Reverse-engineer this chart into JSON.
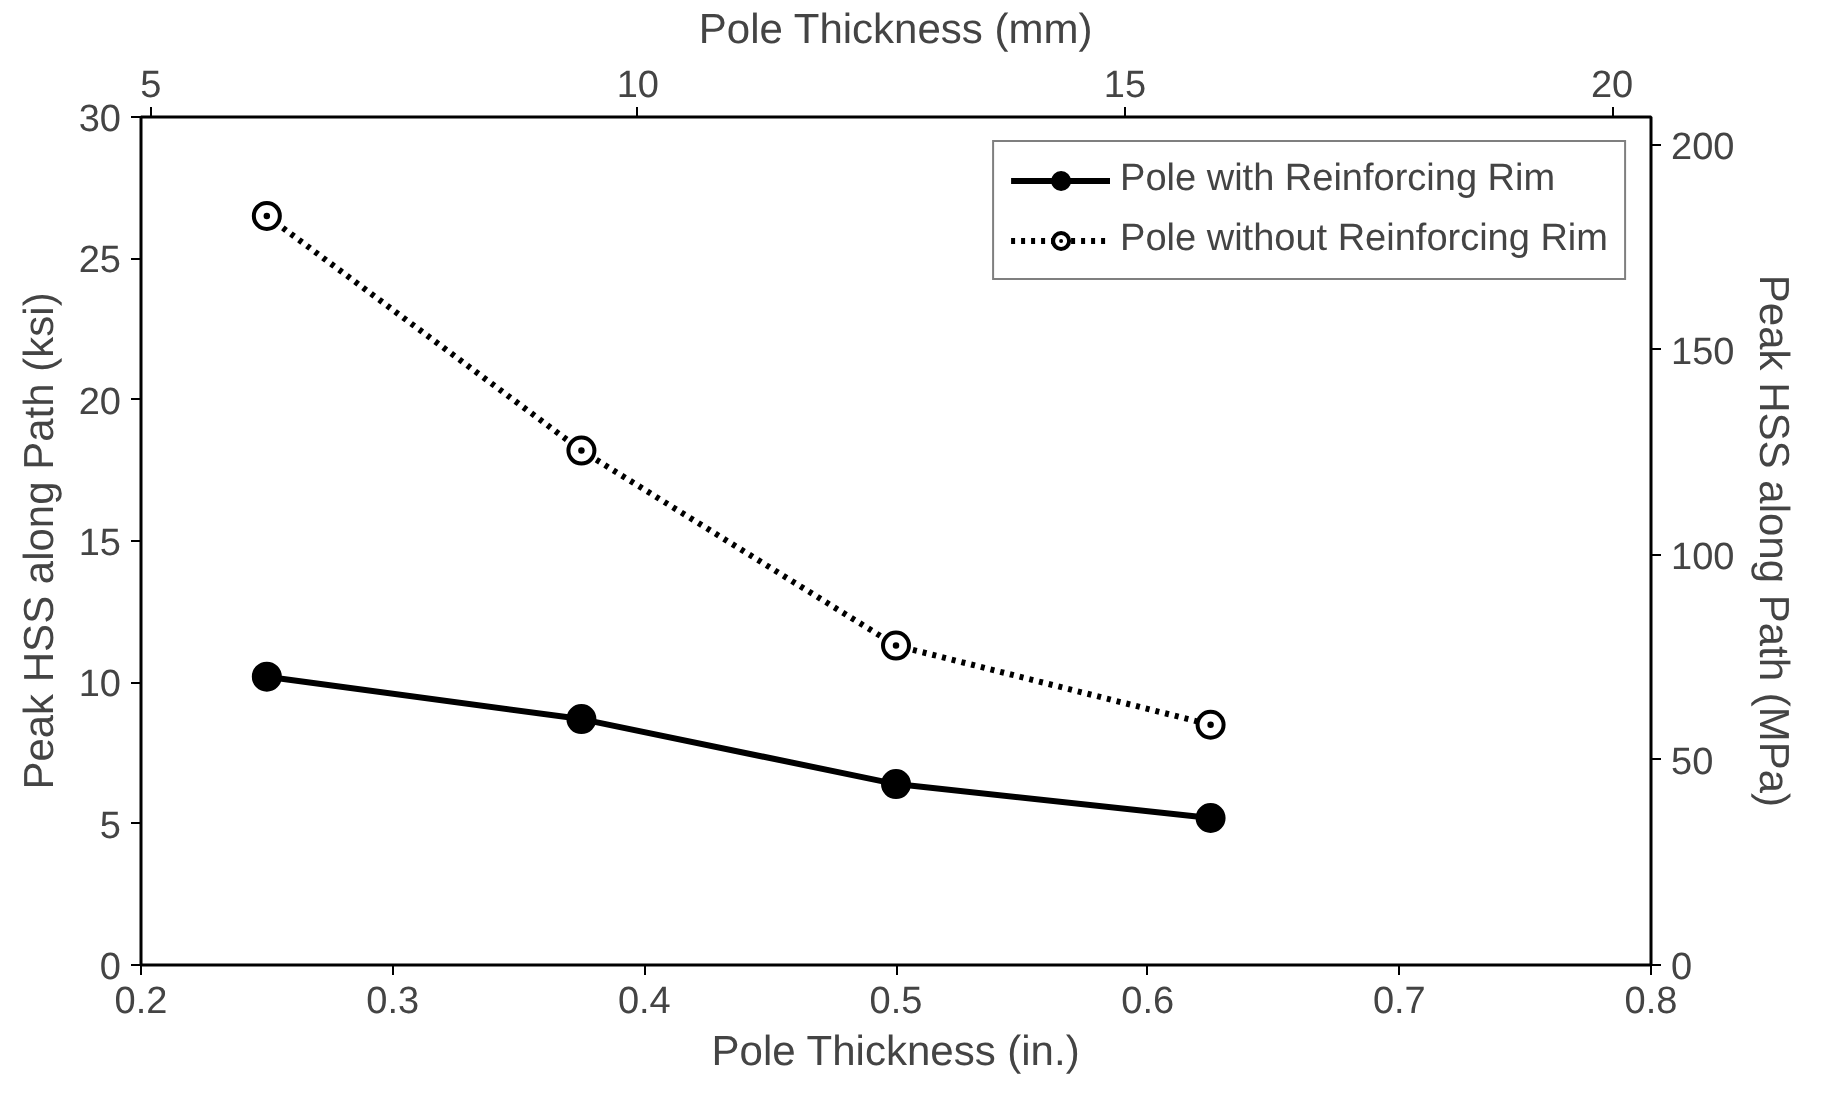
{
  "chart_data": {
    "type": "line",
    "xlabel": "Pole Thickness (in.)",
    "ylabel": "Peak HSS along Path (ksi)",
    "y2label": "Peak HSS along Path (MPa)",
    "x2label": "Pole Thickness (mm)",
    "x": [
      0.25,
      0.375,
      0.5,
      0.625
    ],
    "series": [
      {
        "name": "Pole with Reinforcing Rim",
        "color": "#000000",
        "line_style": "solid",
        "values": [
          10.2,
          8.7,
          6.4,
          5.2
        ]
      },
      {
        "name": "Pole without Reinforcing Rim",
        "color": "#000000",
        "line_style": "dotted",
        "values": [
          26.5,
          18.2,
          11.3,
          8.5
        ]
      }
    ],
    "xlim": [
      0.2,
      0.8
    ],
    "xticks": [
      0.2,
      0.3,
      0.4,
      0.5,
      0.6,
      0.7,
      0.8
    ],
    "ylim": [
      0,
      30
    ],
    "yticks": [
      0,
      5,
      10,
      15,
      20,
      25,
      30
    ],
    "x2lim": [
      4.9,
      20.4
    ],
    "x2ticks": [
      5,
      10,
      15,
      20
    ],
    "y2lim": [
      0,
      206.8
    ],
    "y2ticks": [
      0,
      50,
      100,
      150,
      200
    ],
    "marker": "circle",
    "grid": false,
    "legend": "top right"
  }
}
